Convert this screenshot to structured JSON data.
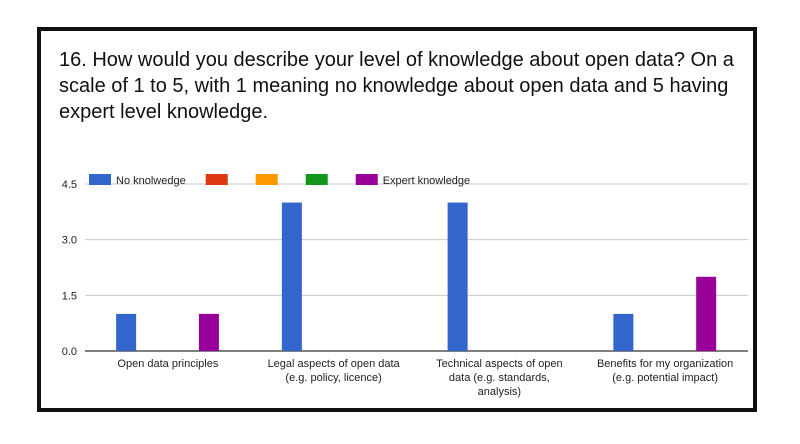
{
  "question": "16. How would you describe your level of knowledge about open data? On a scale of 1 to 5, with 1 meaning no knowledge about open data and 5 having expert level knowledge.",
  "chart_data": {
    "type": "bar",
    "categories": [
      [
        "Open data principles"
      ],
      [
        "Legal aspects of open data",
        "(e.g. policy, licence)"
      ],
      [
        "Technical aspects of open",
        "data (e.g. standards,",
        "analysis)"
      ],
      [
        "Benefits for my organization",
        "(e.g. potential impact)"
      ]
    ],
    "series": [
      {
        "name": "No knolwedge",
        "color": "#3366cc",
        "values": [
          1,
          4,
          4,
          1
        ]
      },
      {
        "name": "",
        "color": "#dc3912",
        "values": [
          0,
          0,
          0,
          0
        ]
      },
      {
        "name": "",
        "color": "#ff9900",
        "values": [
          0,
          0,
          0,
          0
        ]
      },
      {
        "name": "",
        "color": "#109618",
        "values": [
          0,
          0,
          0,
          0
        ]
      },
      {
        "name": "Expert knowledge",
        "color": "#990099",
        "values": [
          1,
          0,
          0,
          2
        ]
      }
    ],
    "yticks": [
      "0.0",
      "1.5",
      "3.0",
      "4.5"
    ],
    "ylim": [
      0,
      4.5
    ],
    "grid": true,
    "legend_position": "top-left"
  }
}
